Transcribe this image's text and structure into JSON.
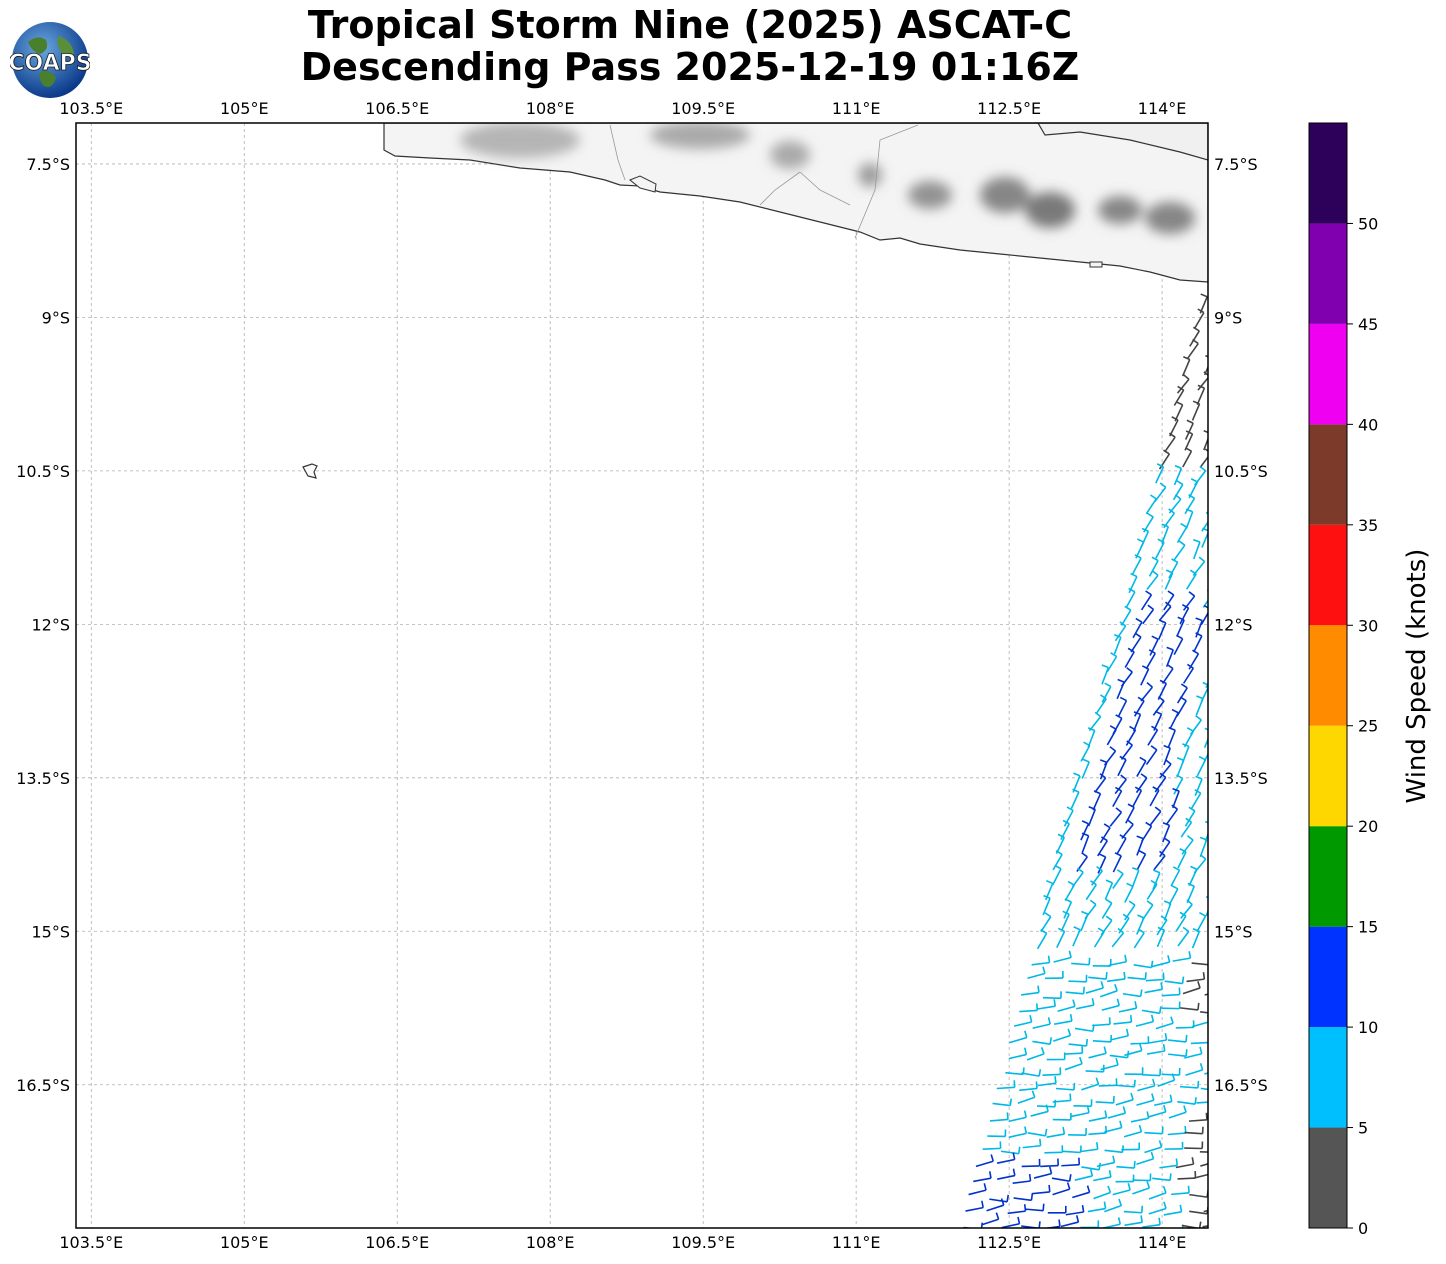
{
  "title": {
    "line1": "Tropical Storm Nine (2025) ASCAT-C",
    "line2": "Descending Pass 2025-12-19 01:16Z"
  },
  "logo": {
    "text": "COAPS",
    "icon": "coaps-globe-logo"
  },
  "map": {
    "lon_range": [
      103.35,
      114.45
    ],
    "lat_range": [
      -17.9,
      -7.1
    ],
    "lon_ticks": [
      {
        "value": 103.5,
        "label": "103.5°E"
      },
      {
        "value": 105.0,
        "label": "105°E"
      },
      {
        "value": 106.5,
        "label": "106.5°E"
      },
      {
        "value": 108.0,
        "label": "108°E"
      },
      {
        "value": 109.5,
        "label": "109.5°E"
      },
      {
        "value": 111.0,
        "label": "111°E"
      },
      {
        "value": 112.5,
        "label": "112.5°E"
      },
      {
        "value": 114.0,
        "label": "114°E"
      }
    ],
    "lat_ticks": [
      {
        "value": -7.5,
        "label": "7.5°S"
      },
      {
        "value": -9.0,
        "label": "9°S"
      },
      {
        "value": -10.5,
        "label": "10.5°S"
      },
      {
        "value": -12.0,
        "label": "12°S"
      },
      {
        "value": -13.5,
        "label": "13.5°S"
      },
      {
        "value": -15.0,
        "label": "15°S"
      },
      {
        "value": -16.5,
        "label": "16.5°S"
      }
    ],
    "grid": true,
    "land": "Java (Indonesia) coastline with grayscale cloud imagery",
    "data_region": "ASCAT-C swath along the eastern edge, wind barbs colored by speed"
  },
  "colorbar": {
    "label": "Wind Speed (knots)",
    "range": [
      0,
      55
    ],
    "ticks": [
      {
        "value": 0,
        "label": "0"
      },
      {
        "value": 5,
        "label": "5"
      },
      {
        "value": 10,
        "label": "10"
      },
      {
        "value": 15,
        "label": "15"
      },
      {
        "value": 20,
        "label": "20"
      },
      {
        "value": 25,
        "label": "25"
      },
      {
        "value": 30,
        "label": "30"
      },
      {
        "value": 35,
        "label": "35"
      },
      {
        "value": 40,
        "label": "40"
      },
      {
        "value": 45,
        "label": "45"
      },
      {
        "value": 50,
        "label": "50"
      }
    ],
    "bins": [
      {
        "from": 0,
        "to": 5,
        "color": "#555555"
      },
      {
        "from": 5,
        "to": 10,
        "color": "#00bfff"
      },
      {
        "from": 10,
        "to": 15,
        "color": "#0033ff"
      },
      {
        "from": 15,
        "to": 20,
        "color": "#009900"
      },
      {
        "from": 20,
        "to": 25,
        "color": "#ffd700"
      },
      {
        "from": 25,
        "to": 30,
        "color": "#ff8c00"
      },
      {
        "from": 30,
        "to": 35,
        "color": "#ff1010"
      },
      {
        "from": 35,
        "to": 40,
        "color": "#7b3a2a"
      },
      {
        "from": 40,
        "to": 45,
        "color": "#f000f0"
      },
      {
        "from": 45,
        "to": 50,
        "color": "#8000b0"
      },
      {
        "from": 50,
        "to": 55,
        "color": "#2d0059"
      }
    ]
  }
}
